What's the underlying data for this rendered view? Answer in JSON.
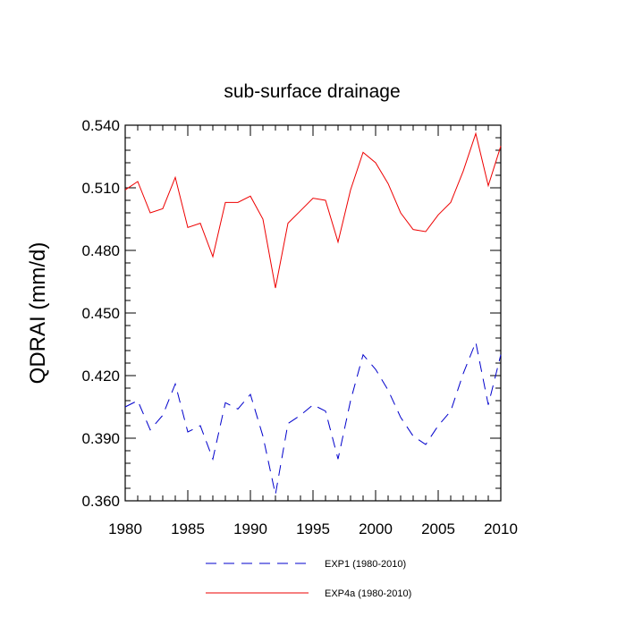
{
  "chart_data": {
    "type": "line",
    "title": "sub-surface drainage",
    "xlabel": "",
    "ylabel": "QDRAI  (mm/d)",
    "xlim": [
      1980,
      2010
    ],
    "ylim": [
      0.36,
      0.54
    ],
    "xticks": [
      "1980",
      "1985",
      "1990",
      "1995",
      "2000",
      "2005",
      "2010"
    ],
    "yticks": [
      "0.360",
      "0.390",
      "0.420",
      "0.450",
      "0.480",
      "0.510",
      "0.540"
    ],
    "grid": false,
    "legend_position": "bottom",
    "x": [
      1980,
      1981,
      1982,
      1983,
      1984,
      1985,
      1986,
      1987,
      1988,
      1989,
      1990,
      1991,
      1992,
      1993,
      1994,
      1995,
      1996,
      1997,
      1998,
      1999,
      2000,
      2001,
      2002,
      2003,
      2004,
      2005,
      2006,
      2007,
      2008,
      2009,
      2010
    ],
    "series": [
      {
        "name": "EXP1 (1980-2010)",
        "color": "#0000cc",
        "dash": "dashed",
        "values": [
          0.405,
          0.408,
          0.394,
          0.401,
          0.416,
          0.393,
          0.396,
          0.38,
          0.407,
          0.404,
          0.411,
          0.391,
          0.363,
          0.397,
          0.401,
          0.406,
          0.403,
          0.38,
          0.408,
          0.43,
          0.423,
          0.413,
          0.4,
          0.391,
          0.387,
          0.396,
          0.403,
          0.421,
          0.436,
          0.406,
          0.43
        ]
      },
      {
        "name": "EXP4a (1980-2010)",
        "color": "#ee0000",
        "dash": "solid",
        "values": [
          0.509,
          0.513,
          0.498,
          0.5,
          0.515,
          0.491,
          0.493,
          0.477,
          0.503,
          0.503,
          0.506,
          0.495,
          0.462,
          0.493,
          0.499,
          0.505,
          0.504,
          0.484,
          0.509,
          0.527,
          0.522,
          0.512,
          0.498,
          0.49,
          0.489,
          0.497,
          0.503,
          0.518,
          0.536,
          0.511,
          0.53
        ]
      }
    ]
  }
}
